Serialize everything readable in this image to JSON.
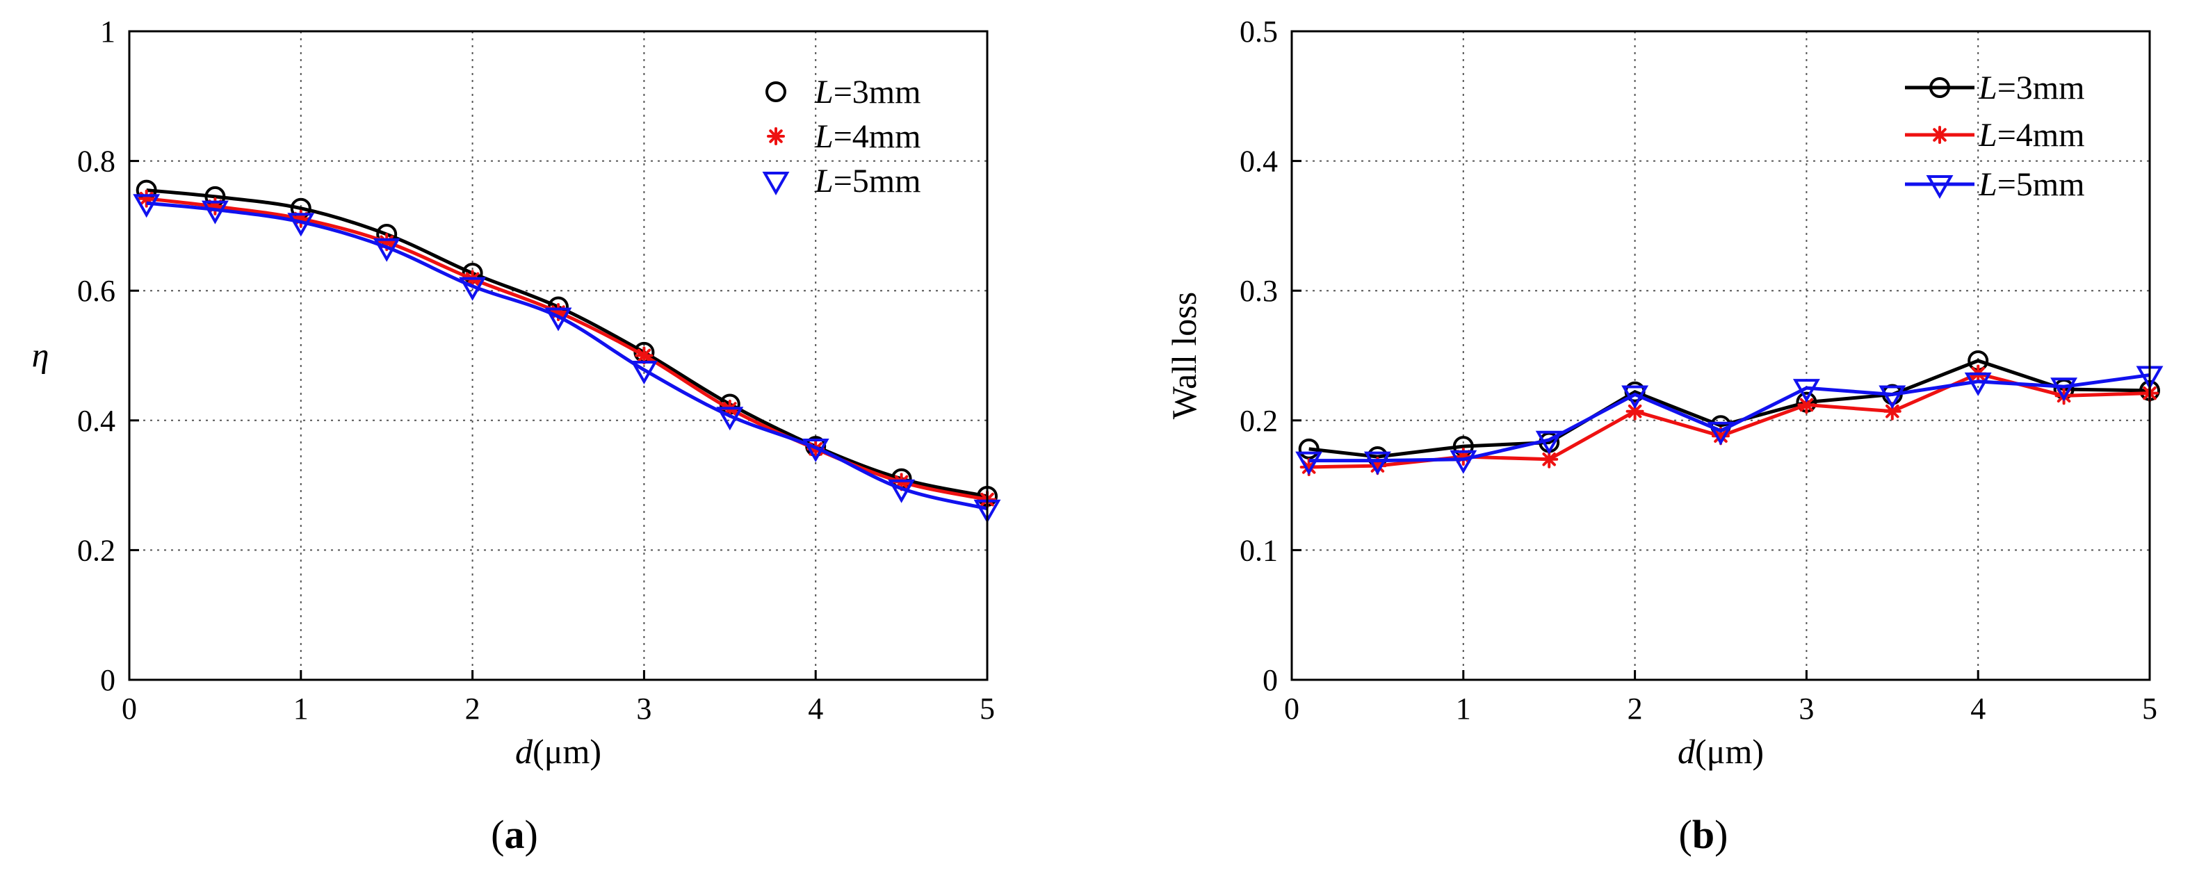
{
  "chart_data": [
    {
      "id": "a",
      "type": "line",
      "panel_label": "a",
      "xlabel_italic": "d",
      "xlabel_unit": "(μm)",
      "ylabel": "η",
      "xlim": [
        0,
        5
      ],
      "ylim": [
        0,
        1
      ],
      "xticks": [
        "0",
        "1",
        "2",
        "3",
        "4",
        "5"
      ],
      "yticks": [
        "0",
        "0.2",
        "0.4",
        "0.6",
        "0.8",
        "1"
      ],
      "grid": true,
      "legend_position": "top-right",
      "series": [
        {
          "name_italic": "L",
          "name_rest": "=3mm",
          "color": "#000000",
          "marker": "circle",
          "marker_fill": "none",
          "x": [
            0.1,
            0.5,
            1,
            1.5,
            2,
            2.5,
            3,
            3.5,
            4,
            4.5,
            5
          ],
          "y": [
            0.755,
            0.745,
            0.727,
            0.687,
            0.627,
            0.575,
            0.505,
            0.425,
            0.36,
            0.31,
            0.283
          ]
        },
        {
          "name_italic": "L",
          "name_rest": "=4mm",
          "color": "#ee1111",
          "marker": "asterisk",
          "marker_fill": "#ee1111",
          "x": [
            0.1,
            0.5,
            1,
            1.5,
            2,
            2.5,
            3,
            3.5,
            4,
            4.5,
            5
          ],
          "y": [
            0.742,
            0.73,
            0.711,
            0.675,
            0.618,
            0.567,
            0.5,
            0.418,
            0.356,
            0.305,
            0.278
          ]
        },
        {
          "name_italic": "L",
          "name_rest": "=5mm",
          "color": "#1111ee",
          "marker": "triangle-down",
          "marker_fill": "none",
          "x": [
            0.1,
            0.5,
            1,
            1.5,
            2,
            2.5,
            3,
            3.5,
            4,
            4.5,
            5
          ],
          "y": [
            0.735,
            0.725,
            0.706,
            0.667,
            0.607,
            0.56,
            0.478,
            0.407,
            0.358,
            0.295,
            0.264
          ]
        }
      ]
    },
    {
      "id": "b",
      "type": "line",
      "panel_label": "b",
      "xlabel_italic": "d",
      "xlabel_unit": "(μm)",
      "ylabel": "Wall loss",
      "xlim": [
        0,
        5
      ],
      "ylim": [
        0,
        0.5
      ],
      "xticks": [
        "0",
        "1",
        "2",
        "3",
        "4",
        "5"
      ],
      "yticks": [
        "0",
        "0.1",
        "0.2",
        "0.3",
        "0.4",
        "0.5"
      ],
      "grid": true,
      "legend_position": "top-right",
      "series": [
        {
          "name_italic": "L",
          "name_rest": "=3mm",
          "color": "#000000",
          "marker": "circle",
          "marker_fill": "none",
          "x": [
            0.1,
            0.5,
            1,
            1.5,
            2,
            2.5,
            3,
            3.5,
            4,
            4.5,
            5
          ],
          "y": [
            0.178,
            0.172,
            0.18,
            0.183,
            0.222,
            0.196,
            0.214,
            0.22,
            0.246,
            0.224,
            0.223
          ]
        },
        {
          "name_italic": "L",
          "name_rest": "=4mm",
          "color": "#ee1111",
          "marker": "asterisk",
          "marker_fill": "#ee1111",
          "x": [
            0.1,
            0.5,
            1,
            1.5,
            2,
            2.5,
            3,
            3.5,
            4,
            4.5,
            5
          ],
          "y": [
            0.164,
            0.165,
            0.172,
            0.17,
            0.207,
            0.188,
            0.212,
            0.207,
            0.236,
            0.219,
            0.221
          ]
        },
        {
          "name_italic": "L",
          "name_rest": "=5mm",
          "color": "#1111ee",
          "marker": "triangle-down",
          "marker_fill": "none",
          "x": [
            0.1,
            0.5,
            1,
            1.5,
            2,
            2.5,
            3,
            3.5,
            4,
            4.5,
            5
          ],
          "y": [
            0.169,
            0.169,
            0.17,
            0.185,
            0.22,
            0.192,
            0.225,
            0.22,
            0.23,
            0.226,
            0.235
          ]
        }
      ]
    }
  ]
}
